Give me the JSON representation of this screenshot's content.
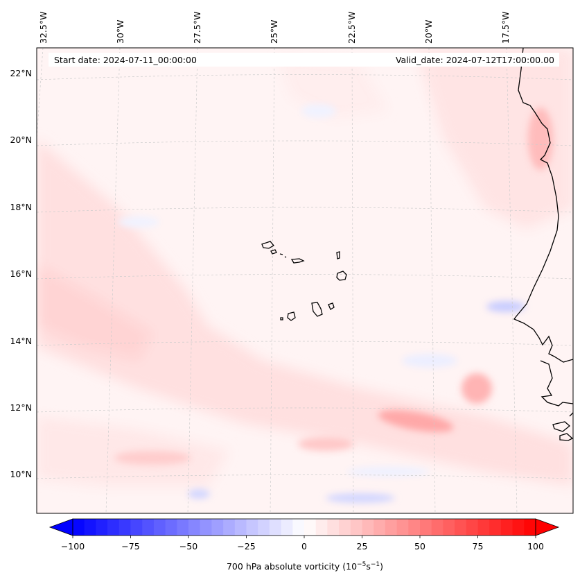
{
  "map": {
    "start_date": "Start date: 2024-07-11_00:00:00",
    "valid_date": "Valid_date: 2024-07-12T17:00:00.00",
    "lon_labels": [
      "32.5°W",
      "30°W",
      "27.5°W",
      "25°W",
      "22.5°W",
      "20°W",
      "17.5°W"
    ],
    "lat_labels": [
      "22°N",
      "20°N",
      "18°N",
      "16°N",
      "14°N",
      "12°N",
      "10°N"
    ],
    "colors": {
      "negative": "#0000ff",
      "neutral": "#ffffff",
      "positive": "#ff0000",
      "coast": "#000000",
      "grid": "#c8c8c8",
      "frame": "#000000"
    }
  },
  "colorbar": {
    "label": "700 hPa absolute vorticity (10",
    "label_exp1": "−5",
    "label_mid": "s",
    "label_exp2": "−1",
    "label_end": ")",
    "ticks": [
      "−100",
      "−75",
      "−50",
      "−25",
      "0",
      "25",
      "50",
      "75",
      "100"
    ],
    "vmin": -100,
    "vmax": 100,
    "levels": 41
  }
}
